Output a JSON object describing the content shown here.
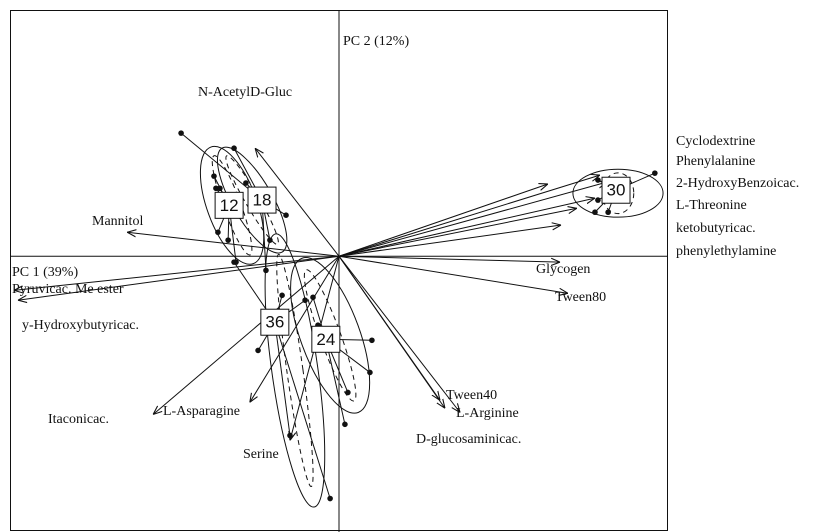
{
  "chart_data": {
    "type": "biplot",
    "x_label": "PC 1 (39%)",
    "y_label": "PC 2 (12%)",
    "xlim": [
      -10,
      10
    ],
    "ylim": [
      -8.4,
      7.5
    ],
    "arrows": [
      {
        "label": "N-AcetylD-Gluc",
        "x": -2.55,
        "y": 3.29
      },
      {
        "label": "Mannitol",
        "x": -6.44,
        "y": 0.73
      },
      {
        "label": "Cyclodextrine",
        "x": 6.35,
        "y": 2.2
      },
      {
        "label": "Phenylalanine",
        "x": 7.93,
        "y": 2.47
      },
      {
        "label": "2-HydroxyBenzoicac.",
        "x": 8.15,
        "y": 2.26
      },
      {
        "label": "L-Threonine",
        "x": 7.78,
        "y": 1.77
      },
      {
        "label": "ketobutyricac.",
        "x": 7.23,
        "y": 1.46
      },
      {
        "label": "phenylethylamine",
        "x": 6.75,
        "y": 0.95
      },
      {
        "label": "Glycogen",
        "x": 6.72,
        "y": -0.18
      },
      {
        "label": "Tween80",
        "x": 6.96,
        "y": -1.13
      },
      {
        "label": "Pyruvicac. Me ester",
        "x": -9.88,
        "y": -1.04
      },
      {
        "label": "y-Hydroxybutyricac.",
        "x": -9.76,
        "y": -1.34
      },
      {
        "label": "Itaconicac.",
        "x": -5.65,
        "y": -4.82
      },
      {
        "label": "L-Asparagine",
        "x": -2.71,
        "y": -4.45
      },
      {
        "label": "Serine",
        "x": -1.49,
        "y": -5.61
      },
      {
        "label": "Tween40",
        "x": 3.07,
        "y": -4.39
      },
      {
        "label": "L-Arginine",
        "x": 3.68,
        "y": -4.76
      },
      {
        "label": "D-glucosaminicac.",
        "x": 3.22,
        "y": -4.63
      }
    ],
    "groups": [
      {
        "name": "12",
        "x": -3.34,
        "y": 1.55,
        "points_x": [
          -3.74,
          -3.8,
          -3.62,
          -3.68,
          -3.13,
          -3.37
        ],
        "points_y": [
          2.07,
          2.44,
          2.07,
          0.73,
          -0.18,
          0.49
        ],
        "ellipse": {
          "cx": -3.25,
          "cy": 1.55,
          "rx": 0.76,
          "ry": 1.89,
          "angle": 20
        }
      },
      {
        "name": "18",
        "x": -2.34,
        "y": 1.71,
        "points_x": [
          -4.8,
          -3.19,
          -2.83,
          -2.1,
          -1.61,
          -2.22
        ],
        "points_y": [
          3.75,
          3.29,
          2.23,
          0.49,
          1.25,
          -0.43
        ],
        "ellipse": {
          "cx": -2.64,
          "cy": 1.71,
          "rx": 0.61,
          "ry": 1.83,
          "angle": 30
        }
      },
      {
        "name": "30",
        "x": 8.42,
        "y": 2.01,
        "points_x": [
          9.6,
          7.87,
          8.54,
          7.78,
          8.18,
          7.87
        ],
        "points_y": [
          2.53,
          2.32,
          2.01,
          1.34,
          1.34,
          1.71
        ],
        "ellipse": {
          "cx": 8.48,
          "cy": 1.92,
          "rx": 1.37,
          "ry": 0.73,
          "angle": 0
        }
      },
      {
        "name": "36",
        "x": -1.95,
        "y": -2.01,
        "points_x": [
          -3.19,
          -2.46,
          -1.49,
          -0.27,
          -1.03,
          -1.73
        ],
        "points_y": [
          -0.18,
          -2.87,
          -5.46,
          -7.38,
          -1.34,
          -1.19
        ],
        "ellipse": {
          "cx": -1.34,
          "cy": -3.48,
          "rx": 0.7,
          "ry": 4.2,
          "angle": 8
        }
      },
      {
        "name": "24",
        "x": -0.4,
        "y": -2.53,
        "points_x": [
          -0.79,
          1.0,
          0.27,
          0.18,
          -0.64,
          0.94
        ],
        "points_y": [
          -1.25,
          -2.56,
          -4.15,
          -5.12,
          -2.1,
          -3.54
        ],
        "ellipse": {
          "cx": -0.27,
          "cy": -2.41,
          "rx": 0.9,
          "ry": 2.5,
          "angle": 20
        }
      }
    ]
  }
}
